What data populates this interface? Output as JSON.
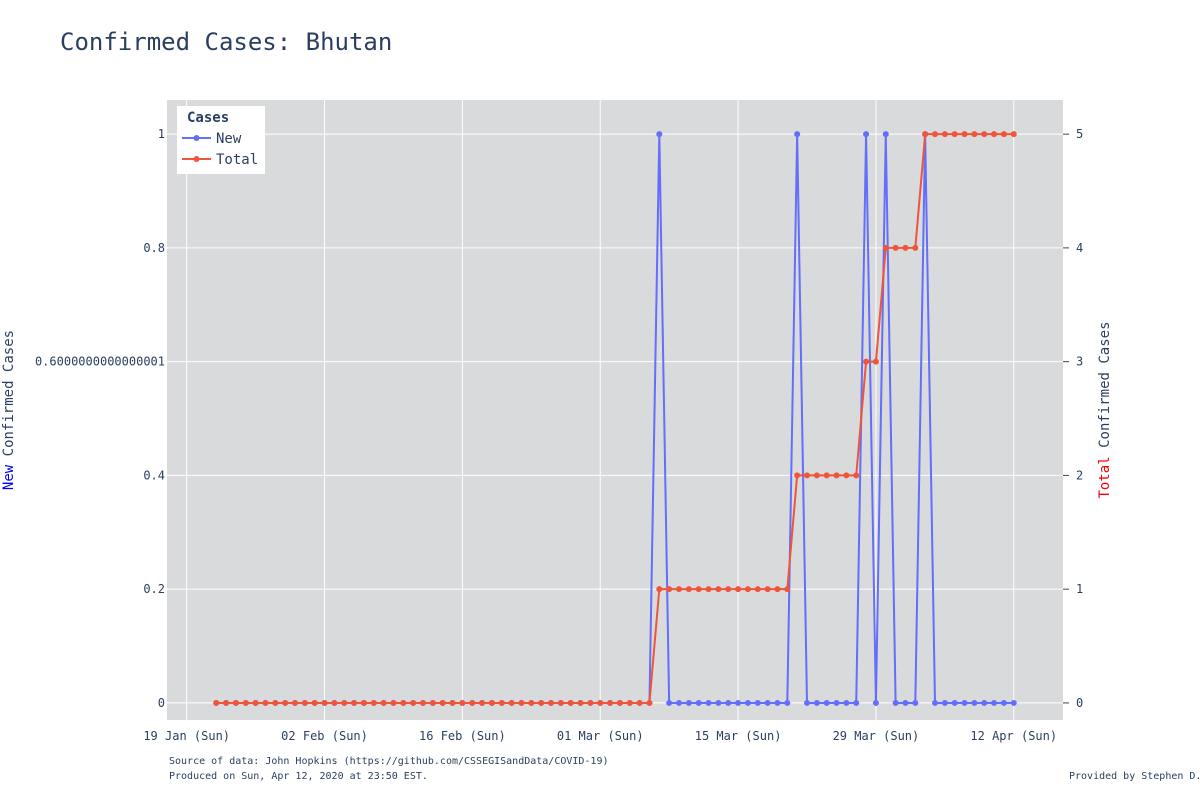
{
  "chart_data": {
    "type": "line",
    "title": "Confirmed Cases: Bhutan",
    "x_start": "2020-01-22",
    "x_end": "2020-04-12",
    "xlim": [
      "2020-01-17",
      "2020-04-17"
    ],
    "x_tick_labels": [
      "19 Jan (Sun)",
      "02 Feb (Sun)",
      "16 Feb (Sun)",
      "01 Mar (Sun)",
      "15 Mar (Sun)",
      "29 Mar (Sun)",
      "12 Apr (Sun)"
    ],
    "x_tick_dates": [
      "2020-01-19",
      "2020-02-02",
      "2020-02-16",
      "2020-03-01",
      "2020-03-15",
      "2020-03-29",
      "2020-04-12"
    ],
    "y_left": {
      "label_prefix": "New",
      "label_rest": " Confirmed Cases",
      "label_prefix_color": "#0000ff",
      "ylim": [
        -0.03,
        1.06
      ],
      "ticks": [
        0,
        0.2,
        0.4,
        0.6,
        0.8,
        1
      ],
      "tick_labels": [
        "0",
        "0.2",
        "0.4",
        "0.6000000000000001",
        "0.8",
        "1"
      ]
    },
    "y_right": {
      "label_prefix": "Total",
      "label_rest": " Confirmed Cases",
      "label_prefix_color": "#ff0000",
      "ylim": [
        -0.15,
        5.3
      ],
      "ticks": [
        0,
        1,
        2,
        3,
        4,
        5
      ],
      "tick_labels": [
        "0",
        "1",
        "2",
        "3",
        "4",
        "5"
      ]
    },
    "legend": {
      "title": "Cases",
      "position": "top-left"
    },
    "grid": true,
    "plot_bgcolor": "#d9dadc",
    "series": [
      {
        "name": "New",
        "color": "#636efa",
        "axis": "left",
        "values": [
          0,
          0,
          0,
          0,
          0,
          0,
          0,
          0,
          0,
          0,
          0,
          0,
          0,
          0,
          0,
          0,
          0,
          0,
          0,
          0,
          0,
          0,
          0,
          0,
          0,
          0,
          0,
          0,
          0,
          0,
          0,
          0,
          0,
          0,
          0,
          0,
          0,
          0,
          0,
          0,
          0,
          0,
          0,
          0,
          0,
          1,
          0,
          0,
          0,
          0,
          0,
          0,
          0,
          0,
          0,
          0,
          0,
          0,
          0,
          1,
          0,
          0,
          0,
          0,
          0,
          0,
          1,
          0,
          1,
          0,
          0,
          0,
          1,
          0,
          0,
          0,
          0,
          0,
          0,
          0,
          0,
          0
        ]
      },
      {
        "name": "Total",
        "color": "#ef553b",
        "axis": "right",
        "values": [
          0,
          0,
          0,
          0,
          0,
          0,
          0,
          0,
          0,
          0,
          0,
          0,
          0,
          0,
          0,
          0,
          0,
          0,
          0,
          0,
          0,
          0,
          0,
          0,
          0,
          0,
          0,
          0,
          0,
          0,
          0,
          0,
          0,
          0,
          0,
          0,
          0,
          0,
          0,
          0,
          0,
          0,
          0,
          0,
          0,
          1,
          1,
          1,
          1,
          1,
          1,
          1,
          1,
          1,
          1,
          1,
          1,
          1,
          1,
          2,
          2,
          2,
          2,
          2,
          2,
          2,
          3,
          3,
          4,
          4,
          4,
          4,
          5,
          5,
          5,
          5,
          5,
          5,
          5,
          5,
          5,
          5
        ]
      }
    ]
  },
  "footer": {
    "source": "Source of data: John Hopkins (https://github.com/CSSEGISandData/COVID-19)",
    "produced": "Produced on Sun, Apr 12, 2020 at 23:50 EST.",
    "credit": "Provided by Stephen D."
  }
}
